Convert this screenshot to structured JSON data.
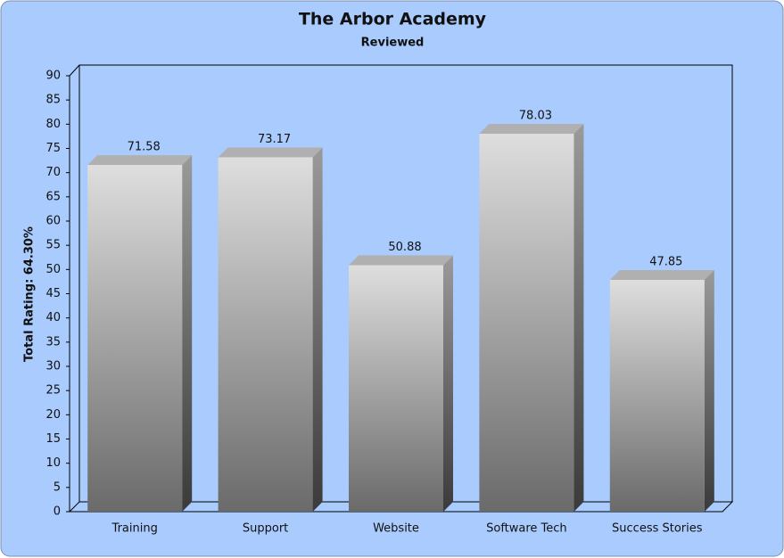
{
  "chart_data": {
    "type": "bar3d",
    "title": "The Arbor Academy",
    "subtitle": "Reviewed",
    "y_label": "Total Rating: 64.30%",
    "categories": [
      "Training",
      "Support",
      "Website",
      "Software Tech",
      "Success Stories"
    ],
    "values": [
      71.58,
      73.17,
      50.88,
      78.03,
      47.85
    ],
    "color": "#b0b0b0",
    "ylim": [
      0,
      90
    ],
    "yticks": [
      0,
      5,
      10,
      15,
      20,
      25,
      30,
      35,
      40,
      45,
      50,
      55,
      60,
      65,
      70,
      75,
      80,
      85,
      90
    ]
  }
}
